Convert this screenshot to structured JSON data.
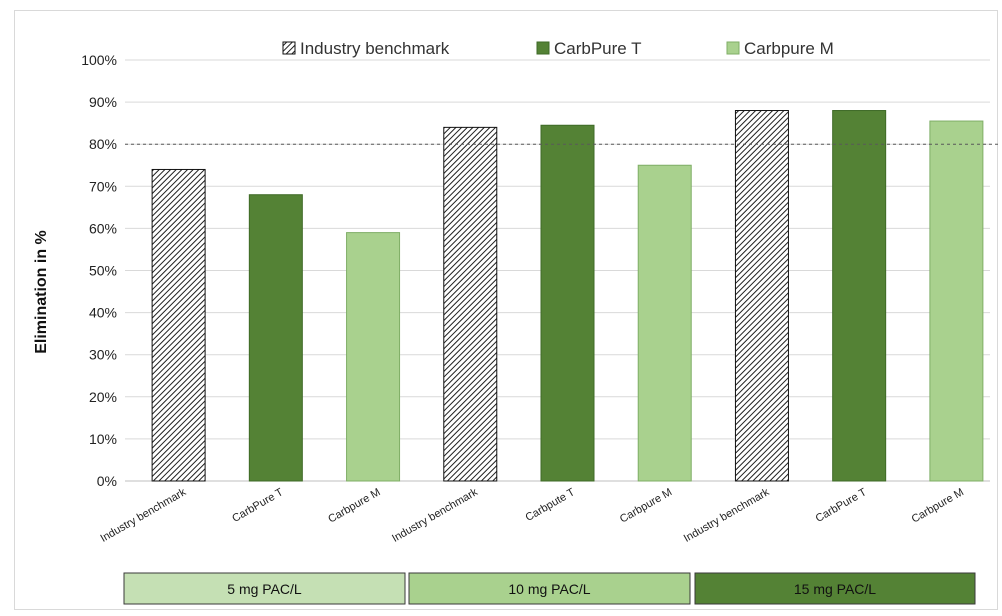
{
  "chart_data": {
    "type": "bar",
    "title": "",
    "xlabel": "",
    "ylabel": "Elimination in %",
    "ylim": [
      0,
      100
    ],
    "y_ticks": [
      "0%",
      "10%",
      "20%",
      "30%",
      "40%",
      "50%",
      "60%",
      "70%",
      "80%",
      "90%",
      "100%"
    ],
    "reference_line": 80,
    "legend": {
      "position": "top",
      "entries": [
        {
          "label": "Industry benchmark",
          "style": "hatched"
        },
        {
          "label": "CarbPure T",
          "style": "dark"
        },
        {
          "label": "Carbpure M",
          "style": "light"
        }
      ]
    },
    "categories": [
      "Industry benchmark",
      "CarbPure T",
      "Carbpure M",
      "Industry benchmark",
      "Carbpute T",
      "Carbpure M",
      "Industry benchmark",
      "CarbPure T",
      "Carbpure M"
    ],
    "values": [
      74,
      68,
      59,
      84,
      84.5,
      75,
      88,
      88,
      85.5
    ],
    "bar_styles": [
      "hatched",
      "dark",
      "light",
      "hatched",
      "dark",
      "light",
      "hatched",
      "dark",
      "light"
    ],
    "groups": [
      {
        "label": "5 mg PAC/L",
        "style": "pale"
      },
      {
        "label": "10 mg PAC/L",
        "style": "light"
      },
      {
        "label": "15 mg PAC/L",
        "style": "dark"
      }
    ],
    "colors": {
      "dark": "#548235",
      "light": "#a9d18e",
      "pale": "#c5e0b4",
      "hatch_line": "#1f1f1f",
      "grid": "#d9d9d9",
      "reference": "#595959"
    },
    "grid": true
  }
}
